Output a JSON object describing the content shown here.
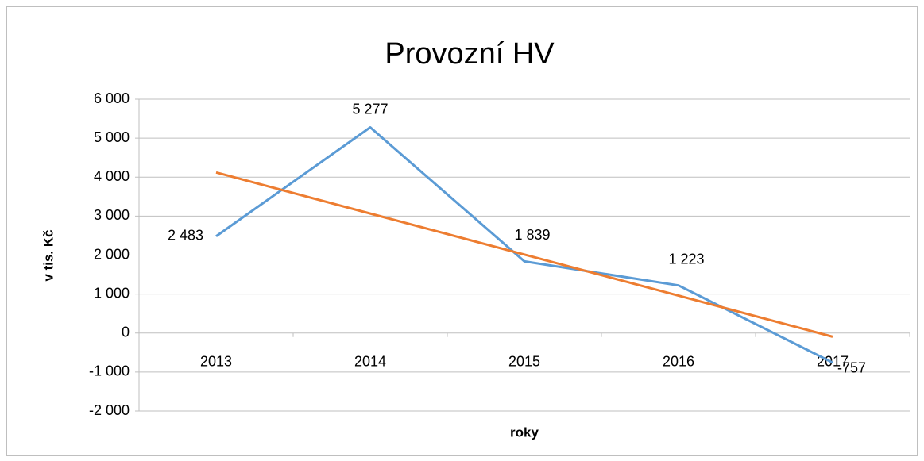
{
  "chart_data": {
    "type": "line",
    "title": "Provozní HV",
    "x_label": "roky",
    "y_label": "v tis. Kč",
    "categories": [
      "2013",
      "2014",
      "2015",
      "2016",
      "2017"
    ],
    "series": [
      {
        "color": "#5b9bd5",
        "values": [
          2483,
          5277,
          1839,
          1223,
          -757
        ],
        "value_labels": [
          "2 483",
          "5 277",
          "1 839",
          "1 223",
          "-757"
        ]
      },
      {
        "color": "#ed7d31",
        "values": [
          4120,
          3066,
          2013,
          960,
          -94
        ]
      }
    ],
    "ylim": [
      -2000,
      6000
    ],
    "yticks": [
      {
        "value": -2000,
        "label": "-2 000"
      },
      {
        "value": -1000,
        "label": "-1 000"
      },
      0,
      {
        "value": 1000,
        "label": "1 000"
      },
      {
        "value": 2000,
        "label": "2 000"
      },
      {
        "value": 3000,
        "label": "3 000"
      },
      {
        "value": 4000,
        "label": "4 000"
      },
      {
        "value": 5000,
        "label": "5 000"
      },
      {
        "value": 6000,
        "label": "6 000"
      }
    ],
    "grid": true
  }
}
